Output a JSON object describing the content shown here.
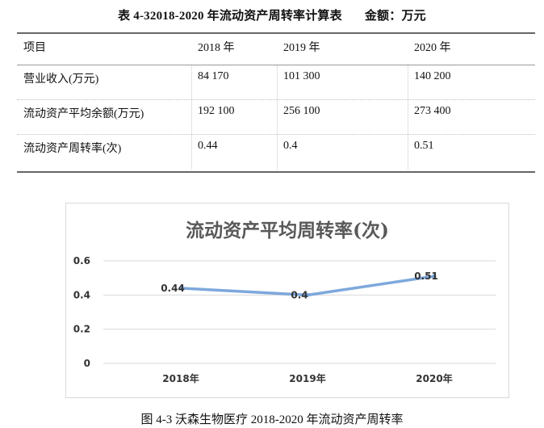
{
  "table": {
    "caption": "表 4-32018-2020 年流动资产周转率计算表",
    "unit_label": "金额：万元",
    "header": [
      "项目",
      "2018 年",
      "2019 年",
      "2020 年"
    ],
    "rows": [
      [
        "营业收入(万元)",
        "84 170",
        "101 300",
        "140 200"
      ],
      [
        "流动资产平均余额(万元)",
        "192 100",
        "256 100",
        "273 400"
      ],
      [
        "流动资产周转率(次)",
        "0.44",
        "0.4",
        "0.51"
      ]
    ]
  },
  "chart_data": {
    "type": "line",
    "title": "流动资产平均周转率(次)",
    "categories": [
      "2018年",
      "2019年",
      "2020年"
    ],
    "series": [
      {
        "values": [
          0.44,
          0.4,
          0.51
        ]
      }
    ],
    "data_labels": [
      "0.44",
      "0.4",
      "0.51"
    ],
    "yticks": [
      "0",
      "0.2",
      "0.4",
      "0.6"
    ],
    "ylim": [
      0,
      0.6
    ],
    "grid": true,
    "legend": "none",
    "line_color": "#6f9fd8"
  },
  "figure_caption": "图 4-3 沃森生物医疗 2018-2020 年流动资产周转率"
}
